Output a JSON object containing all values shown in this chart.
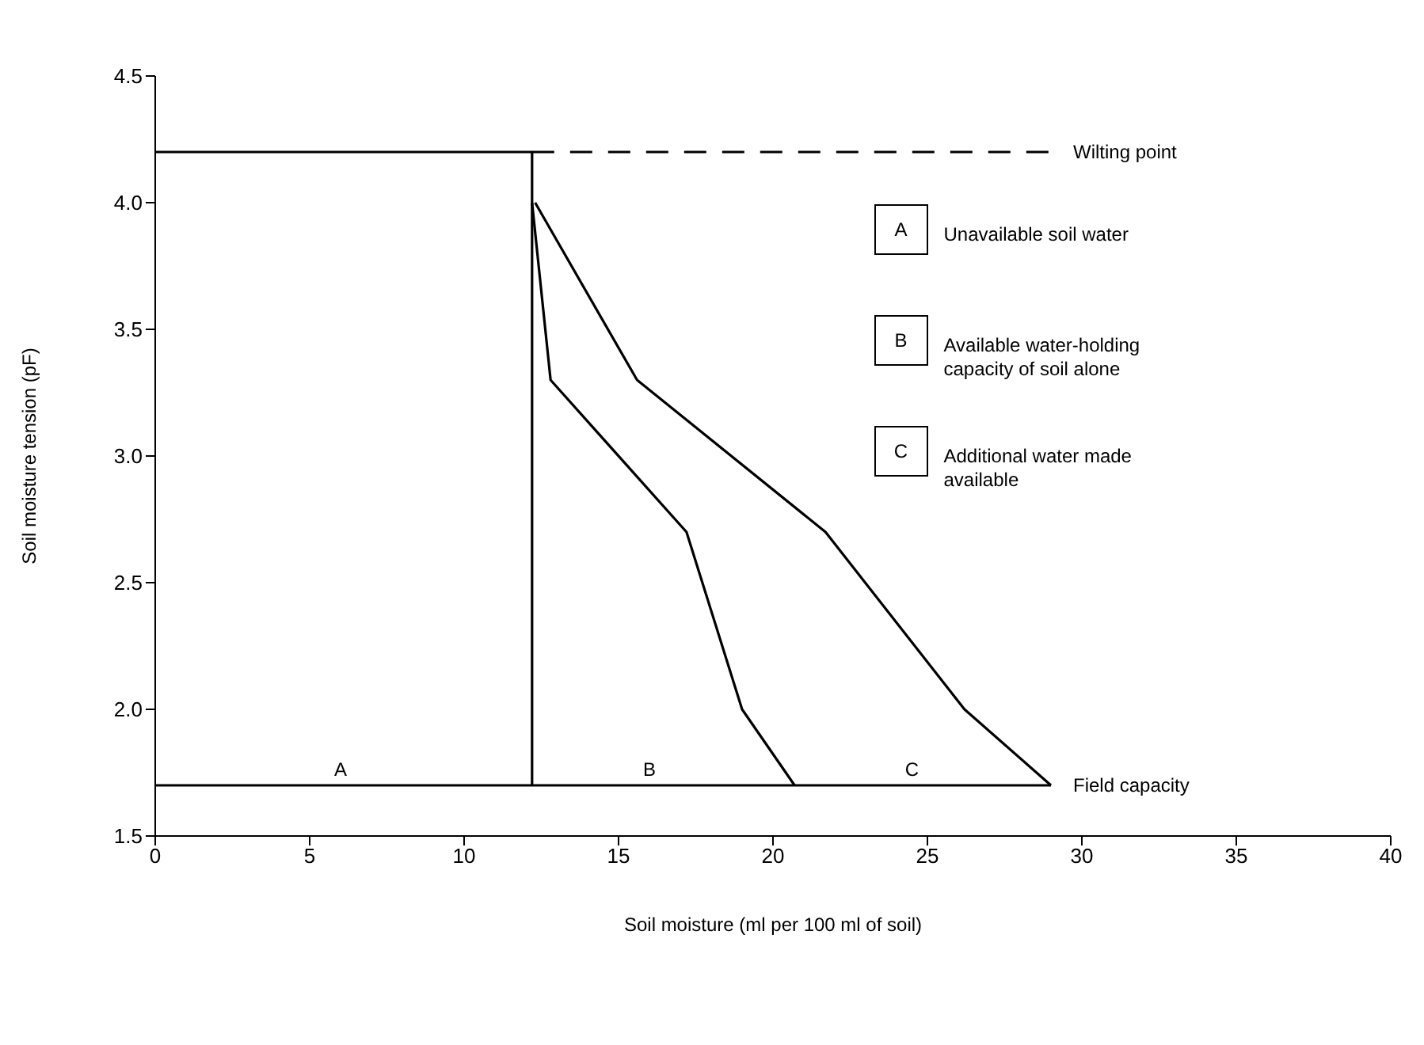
{
  "chart_data": {
    "type": "line",
    "xlabel": "Soil moisture (ml per 100 ml of soil)",
    "ylabel": "Soil moisture tension (pF)",
    "xlim": [
      0,
      40
    ],
    "xticks": [
      0,
      5,
      10,
      15,
      20,
      25,
      30,
      35,
      40
    ],
    "ylim": [
      1.5,
      4.5
    ],
    "yticks": [
      {
        "value": 1.5,
        "label": "1.5"
      },
      {
        "value": 2.0,
        "label": "2.0"
      },
      {
        "value": 2.5,
        "label": "2.5"
      },
      {
        "value": 3.0,
        "label": "3.0"
      },
      {
        "value": 3.5,
        "label": "3.5"
      },
      {
        "value": 4.0,
        "label": "4.0"
      },
      {
        "value": 4.5,
        "label": "4.5"
      }
    ],
    "marker": "none",
    "series": [
      {
        "color": "#000000",
        "line_style": "solid",
        "x": [
          0,
          12.2,
          12.2
        ],
        "values": [
          4.2,
          4.2,
          1.7
        ]
      },
      {
        "name": "Field capacity",
        "color": "#000000",
        "line_style": "solid",
        "x": [
          0,
          29.0
        ],
        "values": [
          1.7,
          1.7
        ]
      },
      {
        "name": "Wilting point",
        "color": "#000000",
        "line_style": "dashed",
        "x": [
          12.2,
          29.0
        ],
        "values": [
          4.2,
          4.2
        ]
      },
      {
        "color": "#000000",
        "line_style": "solid",
        "x": [
          12.2,
          12.8,
          17.2,
          19.0,
          20.7
        ],
        "values": [
          4.0,
          3.3,
          2.7,
          2.0,
          1.7
        ]
      },
      {
        "color": "#000000",
        "line_style": "solid",
        "x": [
          12.3,
          15.6,
          21.7,
          26.2,
          29.0
        ],
        "values": [
          4.0,
          3.3,
          2.7,
          2.0,
          1.7
        ]
      }
    ],
    "annotations": [
      {
        "text": "A",
        "x": 6,
        "y": 1.7
      },
      {
        "text": "B",
        "x": 16,
        "y": 1.7
      },
      {
        "text": "C",
        "x": 24.5,
        "y": 1.7
      },
      "A",
      "Unavailable soil water",
      "B",
      "Available water-holding capacity of soil alone",
      "C",
      "Additional water made available"
    ]
  }
}
